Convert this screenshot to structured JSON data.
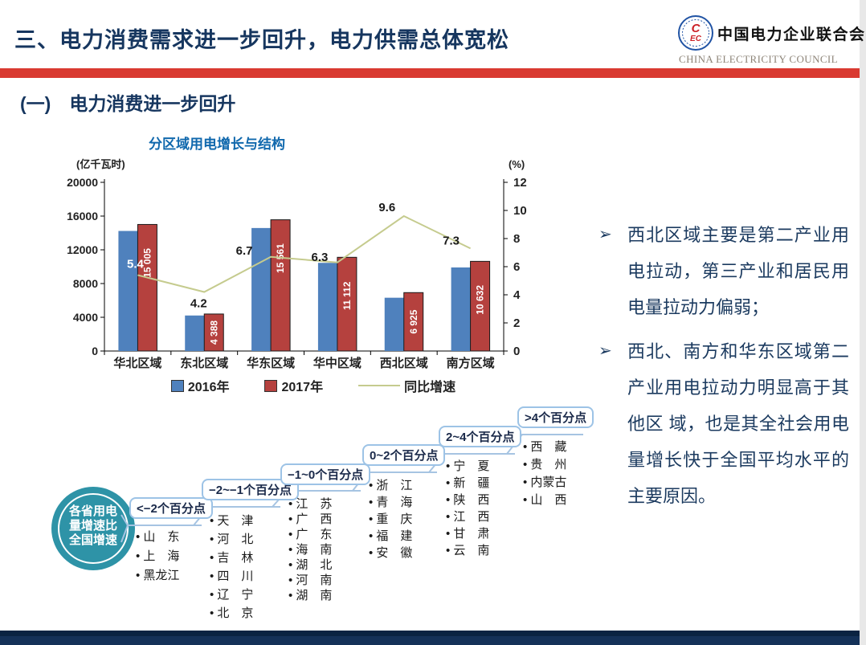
{
  "header": {
    "title": "三、电力消费需求进一步回升，电力供需总体宽松",
    "org_cn": "中国电力企业联合会",
    "org_en": "CHINA ELECTRICITY COUNCIL",
    "emblem_text": "CEC"
  },
  "section_title": "(一)　电力消费进一步回升",
  "chart_data": {
    "type": "bar",
    "title": "分区域用电增长与结构",
    "categories": [
      "华北区域",
      "东北区域",
      "华东区域",
      "华中区域",
      "西北区域",
      "南方区域"
    ],
    "series": [
      {
        "name": "2016年",
        "kind": "bar",
        "axis": "left",
        "color": "#4f81bd",
        "values": [
          14235,
          4211,
          14584,
          10453,
          6318,
          9909
        ]
      },
      {
        "name": "2017年",
        "kind": "bar",
        "axis": "left",
        "color": "#b5413e",
        "values": [
          15005,
          4388,
          15561,
          11112,
          6925,
          10632
        ],
        "value_labels": [
          "15 005",
          "4 388",
          "15 561",
          "11 112",
          "6 925",
          "10 632"
        ]
      },
      {
        "name": "同比增速",
        "kind": "line",
        "axis": "right",
        "color": "#c5cb8e",
        "values": [
          5.4,
          4.2,
          6.7,
          6.3,
          9.6,
          7.3
        ],
        "point_labels": [
          "5.4",
          "4.2",
          "6.7",
          "6.3",
          "9.6",
          "7.3"
        ]
      }
    ],
    "left_axis": {
      "label": "(亿千瓦时)",
      "min": 0,
      "max": 20000,
      "step": 4000,
      "ticks": [
        "0",
        "4000",
        "8000",
        "12000",
        "16000",
        "20000"
      ]
    },
    "right_axis": {
      "label": "(%)",
      "min": 0,
      "max": 12,
      "step": 2,
      "ticks": [
        "0",
        "2",
        "4",
        "6",
        "8",
        "10",
        "12"
      ]
    },
    "legend_position": "bottom",
    "grid": false
  },
  "bullets": [
    "西北区域主要是第二产业用电拉动，第三产业和居民用电量拉动力偏弱；",
    "西北、南方和华东区域第二产业用电拉动力明显高于其他区 域，也是其全社会用电量增长快于全国平均水平的主要原因。"
  ],
  "stair": {
    "hub_label": "各省用电量增速比全国增速",
    "hub_label_lines": [
      "各省用电",
      "量增速比",
      "全国增速"
    ],
    "hub_color": "#2e93a7",
    "steps": [
      {
        "label": "<−2个百分点",
        "provinces": [
          "山　东",
          "上　海",
          "黑龙江"
        ]
      },
      {
        "label": "−2~−1个百分点",
        "provinces": [
          "天　津",
          "河　北",
          "吉　林",
          "四　川",
          "辽　宁",
          "北　京"
        ]
      },
      {
        "label": "−1~0个百分点",
        "provinces": [
          "江　苏",
          "广　西",
          "广　东",
          "海　南",
          "湖　北",
          "河　南",
          "湖　南"
        ]
      },
      {
        "label": "0~2个百分点",
        "provinces": [
          "浙　江",
          "青　海",
          "重　庆",
          "福　建",
          "安　徽"
        ]
      },
      {
        "label": "2~4个百分点",
        "provinces": [
          "宁　夏",
          "新　疆",
          "陕　西",
          "江　西",
          "甘　肃",
          "云　南"
        ]
      },
      {
        "label": ">4个百分点",
        "provinces": [
          "西　藏",
          "贵　州",
          "内蒙古",
          "山　西"
        ]
      }
    ]
  },
  "colors": {
    "accent_red": "#d93a31",
    "title_navy": "#16365f",
    "chart_title_blue": "#1068ad",
    "footer_navy": "#143158"
  }
}
